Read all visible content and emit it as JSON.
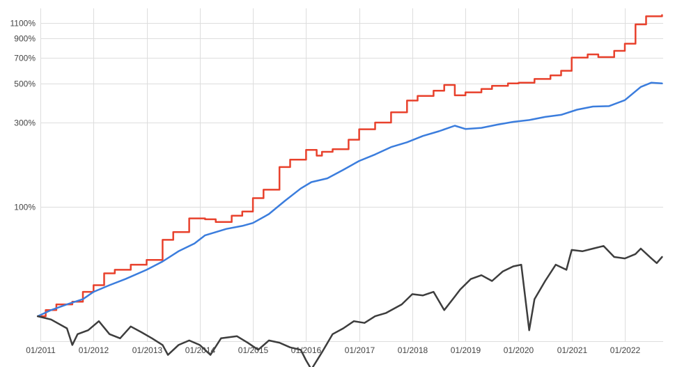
{
  "chart_data": {
    "type": "line",
    "title": "",
    "xlabel": "",
    "ylabel": "",
    "y_scale": "log",
    "grid": true,
    "legend": "none",
    "x_ticks": [
      "01/2011",
      "01/2012",
      "01/2013",
      "01/2014",
      "01/2015",
      "01/2016",
      "01/2017",
      "01/2018",
      "01/2019",
      "01/2020",
      "01/2021",
      "01/2022"
    ],
    "y_ticks": [
      {
        "value": 100,
        "label": "100%"
      },
      {
        "value": 300,
        "label": "300%"
      },
      {
        "value": 500,
        "label": "500%"
      },
      {
        "value": 700,
        "label": "700%"
      },
      {
        "value": 900,
        "label": "900%"
      },
      {
        "value": 1100,
        "label": "1100%"
      }
    ],
    "series": [
      {
        "color": "#e8412c",
        "step": true,
        "x": [
          2010.95,
          2011.1,
          2011.3,
          2011.6,
          2011.8,
          2012.0,
          2012.2,
          2012.4,
          2012.7,
          2013.0,
          2013.3,
          2013.5,
          2013.8,
          2014.1,
          2014.3,
          2014.6,
          2014.8,
          2015.0,
          2015.2,
          2015.5,
          2015.7,
          2016.0,
          2016.2,
          2016.3,
          2016.5,
          2016.8,
          2017.0,
          2017.3,
          2017.6,
          2017.9,
          2018.1,
          2018.4,
          2018.6,
          2018.8,
          2019.0,
          2019.3,
          2019.5,
          2019.8,
          2020.0,
          2020.3,
          2020.6,
          2020.8,
          2021.0,
          2021.3,
          2021.5,
          2021.8,
          2022.0,
          2022.2,
          2022.4,
          2022.7
        ],
        "y": [
          24,
          26,
          28,
          29,
          33,
          36,
          42,
          44,
          47,
          50,
          65,
          72,
          86,
          85,
          82,
          89,
          94,
          112,
          125,
          168,
          185,
          210,
          195,
          205,
          212,
          240,
          275,
          300,
          343,
          400,
          425,
          455,
          490,
          428,
          445,
          465,
          485,
          500,
          505,
          530,
          555,
          590,
          700,
          730,
          705,
          765,
          840,
          1080,
          1200,
          1220
        ]
      },
      {
        "color": "#3b7ddd",
        "step": false,
        "x": [
          2010.95,
          2011.2,
          2011.5,
          2011.8,
          2012.0,
          2012.3,
          2012.6,
          2013.0,
          2013.3,
          2013.6,
          2013.9,
          2014.1,
          2014.5,
          2014.8,
          2015.0,
          2015.3,
          2015.6,
          2015.9,
          2016.1,
          2016.4,
          2016.7,
          2017.0,
          2017.3,
          2017.6,
          2017.9,
          2018.2,
          2018.5,
          2018.8,
          2019.0,
          2019.3,
          2019.6,
          2019.9,
          2020.2,
          2020.5,
          2020.8,
          2021.1,
          2021.4,
          2021.7,
          2022.0,
          2022.3,
          2022.5,
          2022.7
        ],
        "y": [
          24,
          26,
          28,
          30,
          33,
          36,
          39,
          44,
          49,
          56,
          62,
          69,
          75,
          78,
          81,
          91,
          108,
          127,
          138,
          145,
          162,
          182,
          198,
          218,
          232,
          252,
          268,
          288,
          276,
          280,
          292,
          303,
          310,
          323,
          332,
          355,
          370,
          372,
          402,
          478,
          505,
          500
        ]
      },
      {
        "color": "#3d3d3d",
        "step": false,
        "x": [
          2010.95,
          2011.2,
          2011.5,
          2011.6,
          2011.7,
          2011.9,
          2012.1,
          2012.3,
          2012.5,
          2012.7,
          2012.9,
          2013.1,
          2013.3,
          2013.4,
          2013.6,
          2013.8,
          2014.0,
          2014.2,
          2014.4,
          2014.7,
          2014.9,
          2015.1,
          2015.3,
          2015.5,
          2015.7,
          2015.9,
          2016.0,
          2016.1,
          2016.3,
          2016.5,
          2016.7,
          2016.9,
          2017.1,
          2017.3,
          2017.5,
          2017.8,
          2018.0,
          2018.2,
          2018.4,
          2018.6,
          2018.8,
          2018.9,
          2019.1,
          2019.3,
          2019.5,
          2019.7,
          2019.9,
          2020.05,
          2020.2,
          2020.3,
          2020.5,
          2020.7,
          2020.9,
          2021.0,
          2021.2,
          2021.4,
          2021.6,
          2021.8,
          2022.0,
          2022.2,
          2022.3,
          2022.5,
          2022.6,
          2022.7
        ],
        "y": [
          24,
          23,
          20.5,
          16.5,
          19,
          20,
          22.5,
          19,
          18,
          21,
          19.5,
          18,
          16.5,
          14.5,
          16.5,
          17.5,
          16.5,
          14.5,
          18,
          18.5,
          17,
          15.5,
          17.5,
          17,
          16,
          15.5,
          13.5,
          12,
          15,
          19,
          20.5,
          22.5,
          22,
          24,
          25,
          28,
          32,
          31.5,
          33,
          26,
          31,
          34,
          39,
          41,
          38,
          43,
          46,
          47,
          20,
          30,
          38,
          47,
          44,
          57,
          56,
          58,
          60,
          52,
          51,
          54,
          58,
          51,
          48,
          52
        ]
      }
    ]
  }
}
